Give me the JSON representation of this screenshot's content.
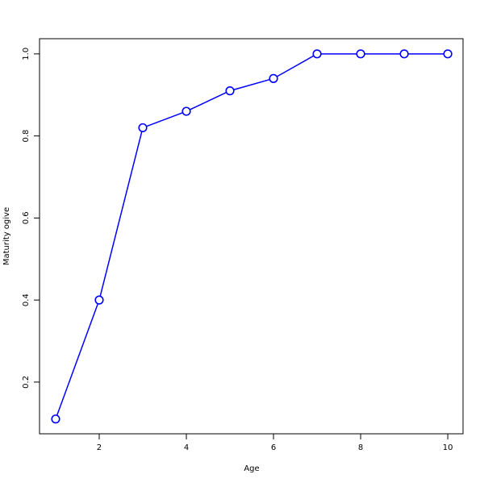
{
  "chart_data": {
    "type": "line",
    "title": "",
    "xlabel": "Age",
    "ylabel": "Maturity ogive",
    "x": [
      1,
      2,
      3,
      4,
      5,
      6,
      7,
      8,
      9,
      10
    ],
    "series": [
      {
        "values": [
          0.11,
          0.4,
          0.82,
          0.86,
          0.91,
          0.94,
          1.0,
          1.0,
          1.0,
          1.0
        ],
        "color": "#0000ff",
        "marker": "open-circle"
      }
    ],
    "xticks": [
      "2",
      "4",
      "6",
      "8",
      "10"
    ],
    "yticks": [
      "0.2",
      "0.4",
      "0.6",
      "0.8",
      "1.0"
    ],
    "xlim": [
      0.63,
      10.35
    ],
    "ylim": [
      0.074,
      1.037
    ],
    "grid": false
  }
}
